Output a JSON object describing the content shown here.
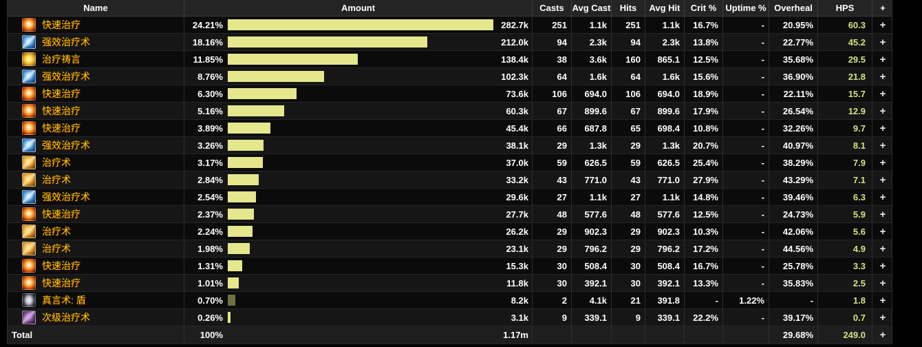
{
  "colors": {
    "bar_normal": "#e5e78c",
    "bar_absorb": "#71703e",
    "spell_name": "#ffd100",
    "hps_value": "#cfe57d",
    "header_bg": "#242424"
  },
  "table": {
    "plus_label": "+",
    "columns": [
      "Name",
      "Amount",
      "Casts",
      "Avg Cast",
      "Hits",
      "Avg Hit",
      "Crit %",
      "Uptime %",
      "Overheal",
      "HPS",
      "+"
    ],
    "rows": [
      {
        "icon": "flash-heal",
        "name": "快速治疗",
        "pct": "24.21%",
        "amount": "282.7k",
        "casts": "251",
        "avg_cast": "1.1k",
        "hits": "251",
        "avg_hit": "1.1k",
        "crit": "16.7%",
        "uptime": "-",
        "overheal": "20.95%",
        "hps": "60.3",
        "bar_color": "#e5e78c"
      },
      {
        "icon": "greater-heal",
        "name": "强效治疗术",
        "pct": "18.16%",
        "amount": "212.0k",
        "casts": "94",
        "avg_cast": "2.3k",
        "hits": "94",
        "avg_hit": "2.3k",
        "crit": "13.8%",
        "uptime": "-",
        "overheal": "22.77%",
        "hps": "45.2",
        "bar_color": "#e5e78c"
      },
      {
        "icon": "prayer-of-healing",
        "name": "治疗祷言",
        "pct": "11.85%",
        "amount": "138.4k",
        "casts": "38",
        "avg_cast": "3.6k",
        "hits": "160",
        "avg_hit": "865.1",
        "crit": "12.5%",
        "uptime": "-",
        "overheal": "35.68%",
        "hps": "29.5",
        "bar_color": "#e5e78c"
      },
      {
        "icon": "greater-heal",
        "name": "强效治疗术",
        "pct": "8.76%",
        "amount": "102.3k",
        "casts": "64",
        "avg_cast": "1.6k",
        "hits": "64",
        "avg_hit": "1.6k",
        "crit": "15.6%",
        "uptime": "-",
        "overheal": "36.90%",
        "hps": "21.8",
        "bar_color": "#e5e78c"
      },
      {
        "icon": "flash-heal",
        "name": "快速治疗",
        "pct": "6.30%",
        "amount": "73.6k",
        "casts": "106",
        "avg_cast": "694.0",
        "hits": "106",
        "avg_hit": "694.0",
        "crit": "18.9%",
        "uptime": "-",
        "overheal": "22.11%",
        "hps": "15.7",
        "bar_color": "#e5e78c"
      },
      {
        "icon": "flash-heal",
        "name": "快速治疗",
        "pct": "5.16%",
        "amount": "60.3k",
        "casts": "67",
        "avg_cast": "899.6",
        "hits": "67",
        "avg_hit": "899.6",
        "crit": "17.9%",
        "uptime": "-",
        "overheal": "26.54%",
        "hps": "12.9",
        "bar_color": "#e5e78c"
      },
      {
        "icon": "flash-heal",
        "name": "快速治疗",
        "pct": "3.89%",
        "amount": "45.4k",
        "casts": "66",
        "avg_cast": "687.8",
        "hits": "65",
        "avg_hit": "698.4",
        "crit": "10.8%",
        "uptime": "-",
        "overheal": "32.26%",
        "hps": "9.7",
        "bar_color": "#e5e78c"
      },
      {
        "icon": "greater-heal",
        "name": "强效治疗术",
        "pct": "3.26%",
        "amount": "38.1k",
        "casts": "29",
        "avg_cast": "1.3k",
        "hits": "29",
        "avg_hit": "1.3k",
        "crit": "20.7%",
        "uptime": "-",
        "overheal": "40.97%",
        "hps": "8.1",
        "bar_color": "#e5e78c"
      },
      {
        "icon": "heal",
        "name": "治疗术",
        "pct": "3.17%",
        "amount": "37.0k",
        "casts": "59",
        "avg_cast": "626.5",
        "hits": "59",
        "avg_hit": "626.5",
        "crit": "25.4%",
        "uptime": "-",
        "overheal": "38.29%",
        "hps": "7.9",
        "bar_color": "#e5e78c"
      },
      {
        "icon": "heal",
        "name": "治疗术",
        "pct": "2.84%",
        "amount": "33.2k",
        "casts": "43",
        "avg_cast": "771.0",
        "hits": "43",
        "avg_hit": "771.0",
        "crit": "27.9%",
        "uptime": "-",
        "overheal": "43.29%",
        "hps": "7.1",
        "bar_color": "#e5e78c"
      },
      {
        "icon": "greater-heal",
        "name": "强效治疗术",
        "pct": "2.54%",
        "amount": "29.6k",
        "casts": "27",
        "avg_cast": "1.1k",
        "hits": "27",
        "avg_hit": "1.1k",
        "crit": "14.8%",
        "uptime": "-",
        "overheal": "39.46%",
        "hps": "6.3",
        "bar_color": "#e5e78c"
      },
      {
        "icon": "flash-heal",
        "name": "快速治疗",
        "pct": "2.37%",
        "amount": "27.7k",
        "casts": "48",
        "avg_cast": "577.6",
        "hits": "48",
        "avg_hit": "577.6",
        "crit": "12.5%",
        "uptime": "-",
        "overheal": "24.73%",
        "hps": "5.9",
        "bar_color": "#e5e78c"
      },
      {
        "icon": "heal",
        "name": "治疗术",
        "pct": "2.24%",
        "amount": "26.2k",
        "casts": "29",
        "avg_cast": "902.3",
        "hits": "29",
        "avg_hit": "902.3",
        "crit": "10.3%",
        "uptime": "-",
        "overheal": "42.06%",
        "hps": "5.6",
        "bar_color": "#e5e78c"
      },
      {
        "icon": "heal",
        "name": "治疗术",
        "pct": "1.98%",
        "amount": "23.1k",
        "casts": "29",
        "avg_cast": "796.2",
        "hits": "29",
        "avg_hit": "796.2",
        "crit": "17.2%",
        "uptime": "-",
        "overheal": "44.56%",
        "hps": "4.9",
        "bar_color": "#e5e78c"
      },
      {
        "icon": "flash-heal",
        "name": "快速治疗",
        "pct": "1.31%",
        "amount": "15.3k",
        "casts": "30",
        "avg_cast": "508.4",
        "hits": "30",
        "avg_hit": "508.4",
        "crit": "16.7%",
        "uptime": "-",
        "overheal": "25.78%",
        "hps": "3.3",
        "bar_color": "#e5e78c"
      },
      {
        "icon": "flash-heal",
        "name": "快速治疗",
        "pct": "1.01%",
        "amount": "11.8k",
        "casts": "30",
        "avg_cast": "392.1",
        "hits": "30",
        "avg_hit": "392.1",
        "crit": "13.3%",
        "uptime": "-",
        "overheal": "35.83%",
        "hps": "2.5",
        "bar_color": "#e5e78c"
      },
      {
        "icon": "pw-shield",
        "name": "真言术: 盾",
        "pct": "0.70%",
        "amount": "8.2k",
        "casts": "2",
        "avg_cast": "4.1k",
        "hits": "21",
        "avg_hit": "391.8",
        "crit": "-",
        "uptime": "1.22%",
        "overheal": "-",
        "hps": "1.8",
        "bar_color": "#71703e"
      },
      {
        "icon": "lesser-heal",
        "name": "次级治疗术",
        "pct": "0.26%",
        "amount": "3.1k",
        "casts": "9",
        "avg_cast": "339.1",
        "hits": "9",
        "avg_hit": "339.1",
        "crit": "22.2%",
        "uptime": "-",
        "overheal": "39.17%",
        "hps": "0.7",
        "bar_color": "#e5e78c"
      }
    ],
    "total": {
      "icon": null,
      "name": "Total",
      "pct": "100%",
      "amount": "1.17m",
      "casts": "",
      "avg_cast": "",
      "hits": "",
      "avg_hit": "",
      "crit": "",
      "uptime": "",
      "overheal": "29.68%",
      "hps": "249.0"
    }
  }
}
